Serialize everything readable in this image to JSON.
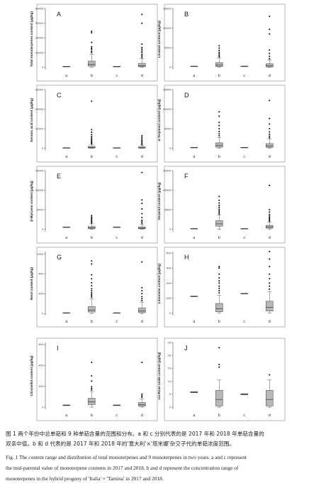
{
  "chart_data": [
    {
      "type": "box",
      "panel": "A",
      "ylabel": "Total monoterpenes content (μg/kg)",
      "yticks": [
        0,
        10000,
        20000,
        30000,
        40000
      ],
      "ylim": [
        -1500,
        40000
      ],
      "categories": [
        "a",
        "b",
        "c",
        "d"
      ],
      "boxes": [
        {
          "cat": "a",
          "q1": 550,
          "median": 650,
          "q3": 750,
          "whisker_low": 550,
          "whisker_high": 750,
          "outliers": []
        },
        {
          "cat": "b",
          "q1": 900,
          "median": 2000,
          "q3": 4300,
          "whisker_low": 0,
          "whisker_high": 8800,
          "outliers": [
            10000,
            11000,
            12300,
            13000,
            14000,
            17000,
            23500,
            24500
          ]
        },
        {
          "cat": "c",
          "q1": 550,
          "median": 650,
          "q3": 750,
          "whisker_low": 550,
          "whisker_high": 750,
          "outliers": []
        },
        {
          "cat": "d",
          "q1": 500,
          "median": 1200,
          "q3": 2800,
          "whisker_low": 0,
          "whisker_high": 6000,
          "outliers": [
            6800,
            7800,
            8800,
            10200,
            11200,
            12400,
            13500,
            15800,
            30000,
            36000
          ]
        }
      ]
    },
    {
      "type": "box",
      "panel": "B",
      "ylabel": "Linalool content (μg/kg)",
      "yticks": [
        0,
        5000,
        10000,
        15000
      ],
      "ylim": [
        -600,
        15000
      ],
      "categories": [
        "a",
        "b",
        "c",
        "d"
      ],
      "boxes": [
        {
          "cat": "a",
          "q1": 200,
          "median": 250,
          "q3": 300,
          "whisker_low": 200,
          "whisker_high": 300,
          "outliers": []
        },
        {
          "cat": "b",
          "q1": 200,
          "median": 600,
          "q3": 1200,
          "whisker_low": 0,
          "whisker_high": 2400,
          "outliers": [
            2700,
            3000,
            3400,
            3800,
            4300,
            4900,
            5500
          ]
        },
        {
          "cat": "c",
          "q1": 200,
          "median": 250,
          "q3": 300,
          "whisker_low": 200,
          "whisker_high": 300,
          "outliers": []
        },
        {
          "cat": "d",
          "q1": 100,
          "median": 450,
          "q3": 900,
          "whisker_low": 0,
          "whisker_high": 1900,
          "outliers": [
            2200,
            2800,
            3500,
            4400,
            8500,
            9700,
            13000
          ]
        }
      ]
    },
    {
      "type": "box",
      "panel": "C",
      "ylabel": "Geranic acid content (μg/kg)",
      "yticks": [
        0,
        10000,
        20000,
        30000
      ],
      "ylim": [
        -1200,
        30000
      ],
      "categories": [
        "a",
        "b",
        "c",
        "d"
      ],
      "boxes": [
        {
          "cat": "a",
          "q1": 200,
          "median": 250,
          "q3": 300,
          "whisker_low": 200,
          "whisker_high": 300,
          "outliers": []
        },
        {
          "cat": "b",
          "q1": 150,
          "median": 500,
          "q3": 1000,
          "whisker_low": 0,
          "whisker_high": 2000,
          "outliers": [
            2400,
            2900,
            3400,
            3900,
            4500,
            5200,
            6000,
            7000,
            8200,
            9500,
            24000
          ]
        },
        {
          "cat": "c",
          "q1": 200,
          "median": 250,
          "q3": 300,
          "whisker_low": 200,
          "whisker_high": 300,
          "outliers": []
        },
        {
          "cat": "d",
          "q1": 100,
          "median": 300,
          "q3": 700,
          "whisker_low": 0,
          "whisker_high": 1600,
          "outliers": [
            2000,
            2600,
            3300,
            4000,
            4800,
            5600,
            6400
          ]
        }
      ]
    },
    {
      "type": "box",
      "panel": "D",
      "ylabel": "α-Terpineol content (μg/kg)",
      "yticks": [
        0,
        5000,
        10000,
        15000
      ],
      "ylim": [
        -600,
        15000
      ],
      "categories": [
        "a",
        "b",
        "c",
        "d"
      ],
      "boxes": [
        {
          "cat": "a",
          "q1": 150,
          "median": 200,
          "q3": 250,
          "whisker_low": 150,
          "whisker_high": 250,
          "outliers": []
        },
        {
          "cat": "b",
          "q1": 300,
          "median": 700,
          "q3": 1400,
          "whisker_low": 0,
          "whisker_high": 2800,
          "outliers": [
            3200,
            3700,
            4300,
            5000,
            5800,
            6600,
            8200,
            9300
          ]
        },
        {
          "cat": "c",
          "q1": 150,
          "median": 200,
          "q3": 250,
          "whisker_low": 150,
          "whisker_high": 250,
          "outliers": []
        },
        {
          "cat": "d",
          "q1": 250,
          "median": 600,
          "q3": 1200,
          "whisker_low": 0,
          "whisker_high": 2400,
          "outliers": [
            2700,
            3100,
            3600,
            4200,
            5000,
            6200,
            7600,
            12200
          ]
        }
      ]
    },
    {
      "type": "box",
      "panel": "E",
      "ylabel": "β-Myrcene content (μg/kg)",
      "yticks": [
        0,
        5000,
        10000,
        15000
      ],
      "ylim": [
        -600,
        15000
      ],
      "categories": [
        "a",
        "b",
        "c",
        "d"
      ],
      "boxes": [
        {
          "cat": "a",
          "q1": 450,
          "median": 520,
          "q3": 600,
          "whisker_low": 450,
          "whisker_high": 600,
          "outliers": []
        },
        {
          "cat": "b",
          "q1": 150,
          "median": 400,
          "q3": 700,
          "whisker_low": 0,
          "whisker_high": 1400,
          "outliers": [
            1600,
            1900,
            2200,
            2500,
            2800,
            3100,
            3500
          ]
        },
        {
          "cat": "c",
          "q1": 450,
          "median": 520,
          "q3": 600,
          "whisker_low": 450,
          "whisker_high": 600,
          "outliers": []
        },
        {
          "cat": "d",
          "q1": 150,
          "median": 300,
          "q3": 600,
          "whisker_low": 0,
          "whisker_high": 1200,
          "outliers": [
            1500,
            1900,
            2300,
            3000,
            4000,
            5200,
            6600,
            7500,
            14500
          ]
        }
      ]
    },
    {
      "type": "box",
      "panel": "F",
      "ylabel": "Geraniol content (μg/kg)",
      "yticks": [
        0,
        5000,
        10000,
        15000
      ],
      "ylim": [
        -600,
        15000
      ],
      "categories": [
        "a",
        "b",
        "c",
        "d"
      ],
      "boxes": [
        {
          "cat": "a",
          "q1": 100,
          "median": 150,
          "q3": 200,
          "whisker_low": 100,
          "whisker_high": 200,
          "outliers": []
        },
        {
          "cat": "b",
          "q1": 800,
          "median": 1400,
          "q3": 2200,
          "whisker_low": 0,
          "whisker_high": 3600,
          "outliers": [
            3900,
            4300,
            4700,
            5100,
            5600,
            6100,
            6700,
            7400,
            8400
          ]
        },
        {
          "cat": "c",
          "q1": 100,
          "median": 150,
          "q3": 200,
          "whisker_low": 100,
          "whisker_high": 200,
          "outliers": []
        },
        {
          "cat": "d",
          "q1": 300,
          "median": 600,
          "q3": 1000,
          "whisker_low": 0,
          "whisker_high": 1900,
          "outliers": [
            2100,
            2400,
            2700,
            3000,
            3400,
            3800,
            4400,
            5000,
            11200
          ]
        }
      ]
    },
    {
      "type": "box",
      "panel": "G",
      "ylabel": "Nerol content (μg/kg)",
      "yticks": [
        0,
        400,
        800,
        1200
      ],
      "ylim": [
        -40,
        1250
      ],
      "categories": [
        "a",
        "b",
        "c",
        "d"
      ],
      "boxes": [
        {
          "cat": "a",
          "q1": 8,
          "median": 12,
          "q3": 16,
          "whisker_low": 8,
          "whisker_high": 16,
          "outliers": []
        },
        {
          "cat": "b",
          "q1": 30,
          "median": 70,
          "q3": 140,
          "whisker_low": 0,
          "whisker_high": 300,
          "outliers": [
            330,
            360,
            390,
            420,
            460,
            500,
            560,
            620,
            700,
            780,
            1000,
            1060
          ]
        },
        {
          "cat": "c",
          "q1": 8,
          "median": 12,
          "q3": 16,
          "whisker_low": 8,
          "whisker_high": 16,
          "outliers": []
        },
        {
          "cat": "d",
          "q1": 20,
          "median": 50,
          "q3": 110,
          "whisker_low": 0,
          "whisker_high": 230,
          "outliers": [
            260,
            300,
            340,
            400,
            460,
            520,
            1040
          ]
        }
      ]
    },
    {
      "type": "box",
      "panel": "H",
      "ylabel": "Limonene content (μg/kg)",
      "yticks": [
        0,
        100,
        200,
        300,
        400
      ],
      "ylim": [
        -15,
        410
      ],
      "categories": [
        "a",
        "b",
        "c",
        "d"
      ],
      "boxes": [
        {
          "cat": "a",
          "q1": 110,
          "median": 112,
          "q3": 114,
          "whisker_low": 110,
          "whisker_high": 114,
          "outliers": []
        },
        {
          "cat": "b",
          "q1": 10,
          "median": 30,
          "q3": 65,
          "whisker_low": 0,
          "whisker_high": 120,
          "outliers": [
            135,
            150,
            165,
            180,
            200,
            215,
            235,
            260,
            300,
            310
          ]
        },
        {
          "cat": "c",
          "q1": 128,
          "median": 130,
          "q3": 132,
          "whisker_low": 128,
          "whisker_high": 132,
          "outliers": []
        },
        {
          "cat": "d",
          "q1": 15,
          "median": 40,
          "q3": 80,
          "whisker_low": 0,
          "whisker_high": 145,
          "outliers": [
            160,
            180,
            200,
            230,
            260,
            310,
            360,
            410
          ]
        }
      ]
    },
    {
      "type": "box",
      "panel": "I",
      "ylabel": "Citronellol content (μg/kg)",
      "yticks": [
        0,
        200,
        400,
        600
      ],
      "ylim": [
        -20,
        620
      ],
      "categories": [
        "a",
        "b",
        "c",
        "d"
      ],
      "boxes": [
        {
          "cat": "a",
          "q1": 15,
          "median": 18,
          "q3": 22,
          "whisker_low": 15,
          "whisker_high": 22,
          "outliers": []
        },
        {
          "cat": "b",
          "q1": 25,
          "median": 50,
          "q3": 85,
          "whisker_low": 0,
          "whisker_high": 150,
          "outliers": [
            165,
            180,
            195,
            250,
            300,
            430
          ]
        },
        {
          "cat": "c",
          "q1": 15,
          "median": 18,
          "q3": 22,
          "whisker_low": 15,
          "whisker_high": 22,
          "outliers": []
        },
        {
          "cat": "d",
          "q1": 10,
          "median": 25,
          "q3": 45,
          "whisker_low": 0,
          "whisker_high": 80,
          "outliers": [
            95,
            110,
            125,
            430
          ]
        }
      ]
    },
    {
      "type": "box",
      "panel": "J",
      "ylabel": "cis-Rose oxide content (μg/kg)",
      "yticks": [
        0,
        5,
        10,
        15,
        20,
        25
      ],
      "ylim": [
        -0.8,
        25
      ],
      "categories": [
        "a",
        "b",
        "c",
        "d"
      ],
      "boxes": [
        {
          "cat": "a",
          "q1": 5.6,
          "median": 5.8,
          "q3": 6.0,
          "whisker_low": 5.6,
          "whisker_high": 6.0,
          "outliers": []
        },
        {
          "cat": "b",
          "q1": 0.5,
          "median": 3.0,
          "q3": 6.5,
          "whisker_low": 0,
          "whisker_high": 10.5,
          "outliers": [
            15.5,
            16.5,
            23.0
          ]
        },
        {
          "cat": "c",
          "q1": 4.8,
          "median": 5.0,
          "q3": 5.2,
          "whisker_low": 4.8,
          "whisker_high": 5.2,
          "outliers": []
        },
        {
          "cat": "d",
          "q1": 0.5,
          "median": 3.0,
          "q3": 6.5,
          "whisker_low": 0,
          "whisker_high": 10.5,
          "outliers": [
            12.5
          ]
        }
      ]
    }
  ],
  "caption": {
    "cn_line1": "图 1  两个年份中总单萜和 9 种单萜含量的范围和分布。a 和 c 分别代表的是 2017 年和 2018 年单萜含量的",
    "cn_line2": "双亲中值。b 和 d 代表的是 2017 年和 2018 年的'意大利'×'塔米娜'杂交子代的单萜浓度范围。",
    "en_line1": "Fig. 1 The content range and distribution of total monoterpenes and 9 monoterpenes in two years. a and c represent",
    "en_line2": "the mid-parental value of monoterpene contents in 2017 and 2018. b and d represent the concentration range of",
    "en_line3": "monoterpenes in the hybrid progeny of 'Italia' × 'Tamina' in 2017 and 2018."
  }
}
